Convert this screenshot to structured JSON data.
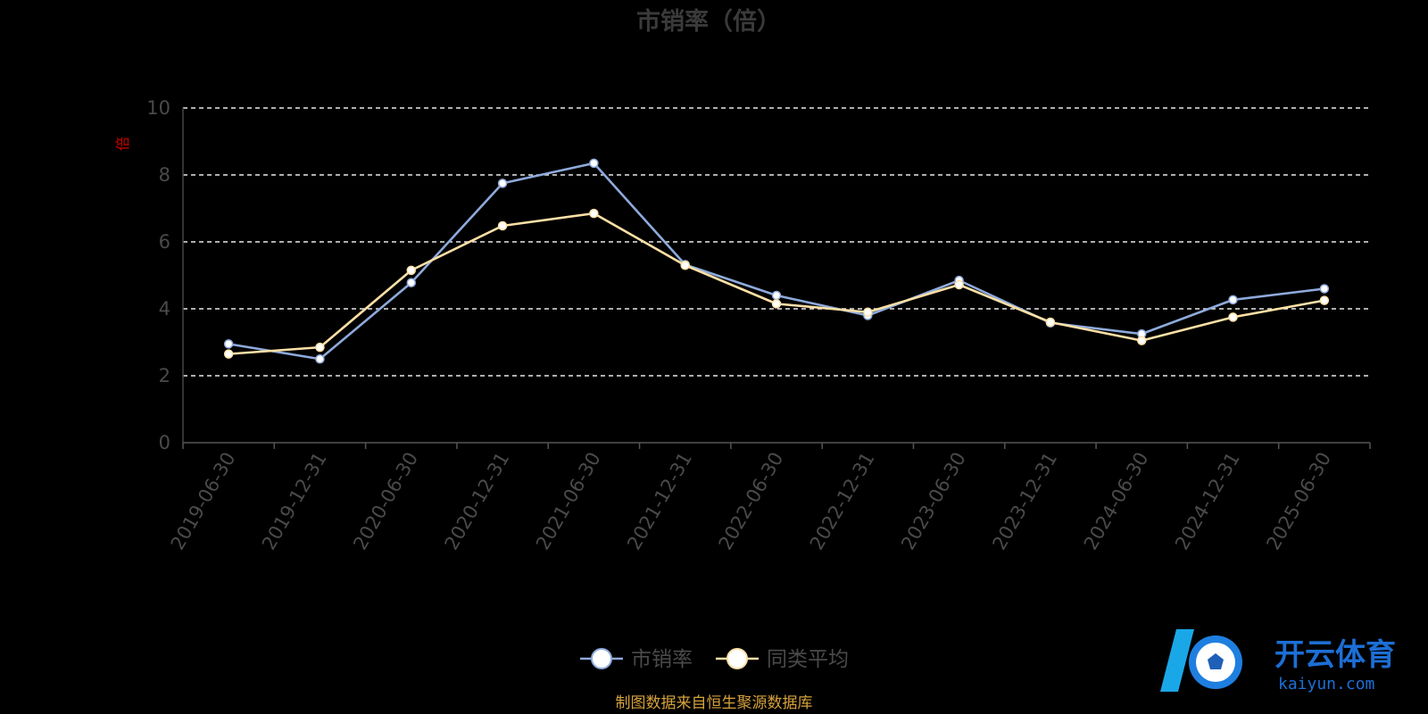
{
  "chart_data": {
    "type": "line",
    "title": "市销率（倍）",
    "ylabel": "倍",
    "ylim": [
      0,
      10
    ],
    "yticks": [
      "0",
      "2",
      "4",
      "6",
      "8",
      "10"
    ],
    "grid": true,
    "legend_position": "bottom-center",
    "categories": [
      "2019-06-30",
      "2019-12-31",
      "2020-06-30",
      "2020-12-31",
      "2021-06-30",
      "2021-12-31",
      "2022-06-30",
      "2022-12-31",
      "2023-06-30",
      "2023-12-31",
      "2024-06-30",
      "2024-12-31",
      "2025-06-30"
    ],
    "series": [
      {
        "name": "市销率",
        "color": "#8eaadb",
        "values": [
          2.95,
          2.5,
          4.78,
          7.75,
          8.35,
          5.32,
          4.4,
          3.8,
          4.85,
          3.58,
          3.25,
          4.27,
          4.6
        ]
      },
      {
        "name": "同类平均",
        "color": "#fde0a6",
        "values": [
          2.65,
          2.85,
          5.15,
          6.48,
          6.85,
          5.3,
          4.15,
          3.9,
          4.72,
          3.6,
          3.05,
          3.75,
          4.25
        ]
      }
    ]
  },
  "source_note": "制图数据来自恒生聚源数据库",
  "watermark": {
    "brand": "开云体育",
    "domain": "kaiyun.com"
  }
}
